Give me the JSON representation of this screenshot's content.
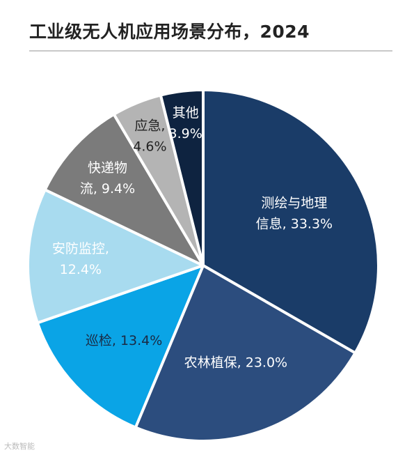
{
  "title": "工业级无人机应用场景分布，2024",
  "watermark": "大数智能",
  "chart_data": {
    "type": "pie",
    "title": "工业级无人机应用场景分布，2024",
    "slices": [
      {
        "label": "测绘与地理信息",
        "value": 33.3,
        "value_text": "33.3%",
        "lines": [
          "测绘与地理",
          "信息, 33.3%"
        ],
        "color": "#1a3c68",
        "label_color": "#ffffff"
      },
      {
        "label": "农林植保",
        "value": 23.0,
        "value_text": "23.0%",
        "lines": [
          "农林植保, 23.0%"
        ],
        "color": "#2c4d7e",
        "label_color": "#ffffff"
      },
      {
        "label": "巡检",
        "value": 13.4,
        "value_text": "13.4%",
        "lines": [
          "巡检, 13.4%"
        ],
        "color": "#0aa4e6",
        "label_color": "#1a2a44"
      },
      {
        "label": "安防监控",
        "value": 12.4,
        "value_text": "12.4%",
        "lines": [
          "安防监控,",
          "12.4%"
        ],
        "color": "#a8dbef",
        "label_color": "#ffffff"
      },
      {
        "label": "快递物流",
        "value": 9.4,
        "value_text": "9.4%",
        "lines": [
          "快递物",
          "流, 9.4%"
        ],
        "color": "#7b7b7b",
        "label_color": "#ffffff"
      },
      {
        "label": "应急",
        "value": 4.6,
        "value_text": "4.6%",
        "lines": [
          "应急,",
          "4.6%"
        ],
        "color": "#b4b4b4",
        "label_color": "#222222"
      },
      {
        "label": "其他",
        "value": 3.9,
        "value_text": "3.9%",
        "lines": [
          "其他",
          "3.9%"
        ],
        "color": "#0e2340",
        "label_color": "#ffffff"
      }
    ]
  }
}
